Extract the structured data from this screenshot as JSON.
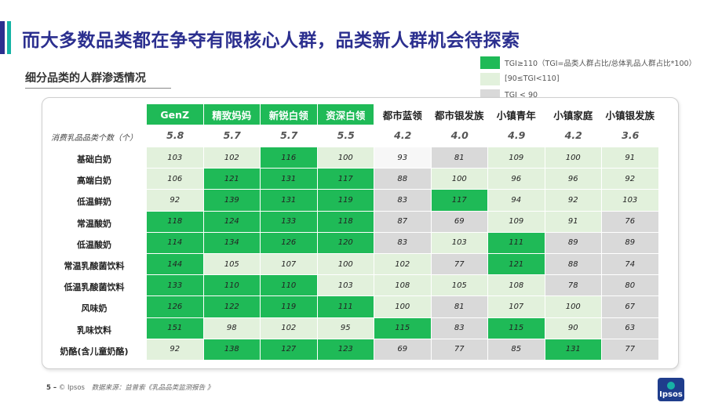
{
  "header": {
    "title": "而大多数品类都在争夺有限核心人群，品类新人群机会待探索",
    "subtitle": "细分品类的人群渗透情况"
  },
  "legend": [
    {
      "label": "TGI≥110（TGI=品类人群占比/总体乳品人群占比*100）",
      "color": "#1fba57"
    },
    {
      "label": "[90≤TGI<110]",
      "color": "#e2f1dc"
    },
    {
      "label": "TGI < 90",
      "color": "#d9d9d9"
    }
  ],
  "table": {
    "columns": [
      "GenZ",
      "精致妈妈",
      "新锐白领",
      "资深白领",
      "都市蓝领",
      "都市银发族",
      "小镇青年",
      "小镇家庭",
      "小镇银发族"
    ],
    "count_label": "消费乳品品类个数（个）",
    "counts": [
      "5.8",
      "5.7",
      "5.7",
      "5.5",
      "4.2",
      "4.0",
      "4.9",
      "4.2",
      "3.6"
    ],
    "rows": [
      {
        "label": "基础白奶",
        "values": [
          103,
          102,
          116,
          100,
          93,
          81,
          109,
          100,
          91
        ],
        "levels": [
          "l",
          "l",
          "d",
          "l",
          "w",
          "g",
          "l",
          "l",
          "l"
        ]
      },
      {
        "label": "高端白奶",
        "values": [
          106,
          121,
          131,
          117,
          88,
          100,
          96,
          96,
          92
        ],
        "levels": [
          "l",
          "d",
          "d",
          "d",
          "g",
          "l",
          "l",
          "l",
          "l"
        ]
      },
      {
        "label": "低温鲜奶",
        "values": [
          92,
          139,
          131,
          119,
          83,
          117,
          94,
          92,
          103
        ],
        "levels": [
          "l",
          "d",
          "d",
          "d",
          "g",
          "d",
          "l",
          "l",
          "l"
        ]
      },
      {
        "label": "常温酸奶",
        "values": [
          118,
          124,
          133,
          118,
          87,
          69,
          109,
          91,
          76
        ],
        "levels": [
          "d",
          "d",
          "d",
          "d",
          "g",
          "g",
          "l",
          "l",
          "g"
        ]
      },
      {
        "label": "低温酸奶",
        "values": [
          114,
          134,
          126,
          120,
          83,
          103,
          111,
          89,
          89
        ],
        "levels": [
          "d",
          "d",
          "d",
          "d",
          "g",
          "l",
          "d",
          "g",
          "g"
        ]
      },
      {
        "label": "常温乳酸菌饮料",
        "values": [
          144,
          105,
          107,
          100,
          102,
          77,
          121,
          88,
          74
        ],
        "levels": [
          "d",
          "l",
          "l",
          "l",
          "l",
          "g",
          "d",
          "g",
          "g"
        ]
      },
      {
        "label": "低温乳酸菌饮料",
        "values": [
          133,
          110,
          110,
          103,
          108,
          105,
          108,
          78,
          80
        ],
        "levels": [
          "d",
          "d",
          "d",
          "l",
          "l",
          "l",
          "l",
          "g",
          "g"
        ]
      },
      {
        "label": "风味奶",
        "values": [
          126,
          122,
          119,
          111,
          100,
          81,
          107,
          100,
          67
        ],
        "levels": [
          "d",
          "d",
          "d",
          "d",
          "l",
          "g",
          "l",
          "l",
          "g"
        ]
      },
      {
        "label": "乳味饮料",
        "values": [
          151,
          98,
          102,
          95,
          115,
          83,
          115,
          90,
          63
        ],
        "levels": [
          "d",
          "l",
          "l",
          "l",
          "d",
          "g",
          "d",
          "l",
          "g"
        ]
      },
      {
        "label": "奶酪(含儿童奶酪)",
        "values": [
          92,
          138,
          127,
          123,
          69,
          77,
          85,
          131,
          77
        ],
        "levels": [
          "l",
          "d",
          "d",
          "d",
          "g",
          "g",
          "g",
          "d",
          "g"
        ]
      }
    ]
  },
  "footer": {
    "page": "5 –",
    "copyright": "© Ipsos",
    "source": "数据来源：益普索《乳品品类监测报告 》"
  },
  "logo": {
    "text": "Ipsos"
  }
}
